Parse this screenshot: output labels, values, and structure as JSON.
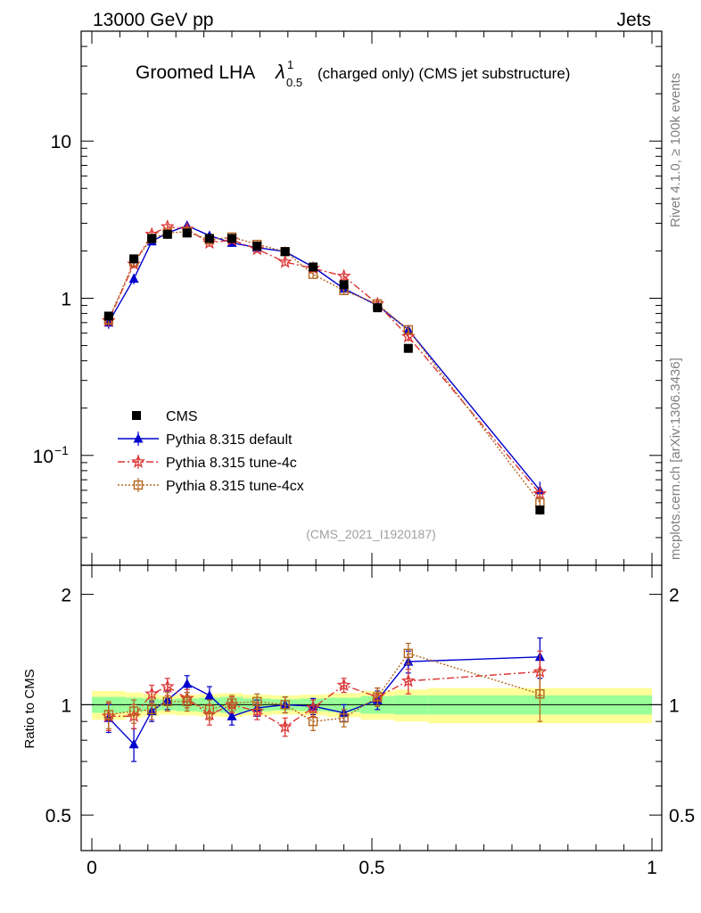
{
  "header": {
    "left": "13000 GeV pp",
    "right": "Jets"
  },
  "chart_data": {
    "type": "scatter",
    "title_main": "Groomed LHA",
    "title_symbol": "λ",
    "title_sup": "1",
    "title_sub": "0.5",
    "title_rest": "(charged only) (CMS jet substructure)",
    "analysis_label": "(CMS_2021_I1920187)",
    "side_label_top": "Rivet 4.1.0, ≥ 100k events",
    "side_label_bottom": "mcplots.cern.ch [arXiv:1306.3436]",
    "ylabel_ratio": "Ratio to CMS",
    "xlim": [
      0,
      1
    ],
    "ylim_main": [
      0.02,
      50
    ],
    "ylim_ratio": [
      0.4,
      2.4
    ],
    "yscale": "log",
    "x_ticks": [
      0,
      0.5,
      1
    ],
    "x_tick_labels": [
      "0",
      "0.5",
      "1"
    ],
    "main_ticks": [
      0.1,
      1,
      10
    ],
    "main_tick_base": [
      "10",
      "1",
      "10"
    ],
    "main_tick_exp": [
      "−1",
      "",
      ""
    ],
    "ratio_ticks": [
      0.5,
      1,
      2
    ],
    "ratio_tick_labels": [
      "0.5",
      "1",
      "2"
    ],
    "x": [
      0.03,
      0.075,
      0.107,
      0.135,
      0.17,
      0.21,
      0.25,
      0.295,
      0.345,
      0.395,
      0.45,
      0.51,
      0.565,
      0.8
    ],
    "band_edges": [
      0,
      0.06,
      0.09,
      0.12,
      0.15,
      0.19,
      0.23,
      0.27,
      0.32,
      0.37,
      0.42,
      0.48,
      0.54,
      0.6,
      1.0
    ],
    "band_inner": [
      0.05,
      0.045,
      0.04,
      0.035,
      0.04,
      0.045,
      0.05,
      0.04,
      0.035,
      0.04,
      0.045,
      0.055,
      0.06,
      0.06
    ],
    "band_outer": [
      0.09,
      0.08,
      0.07,
      0.06,
      0.065,
      0.07,
      0.075,
      0.065,
      0.06,
      0.065,
      0.075,
      0.09,
      0.1,
      0.11
    ],
    "series": [
      {
        "name": "CMS",
        "color": "#000000",
        "marker": "square",
        "values": [
          0.77,
          1.78,
          2.4,
          2.55,
          2.6,
          2.4,
          2.4,
          2.15,
          1.98,
          1.58,
          1.22,
          0.87,
          0.48,
          0.045
        ],
        "errors": [
          0.05,
          0.08,
          0.1,
          0.1,
          0.1,
          0.1,
          0.1,
          0.08,
          0.07,
          0.06,
          0.05,
          0.04,
          0.03,
          0.003
        ]
      },
      {
        "name": "Pythia 8.315 default",
        "color": "#0000cc",
        "marker": "triangle",
        "line": "solid",
        "values": [
          0.7,
          1.33,
          2.3,
          2.6,
          2.9,
          2.5,
          2.25,
          2.1,
          1.98,
          1.58,
          1.15,
          0.9,
          0.63,
          0.06
        ],
        "errors": [
          0.06,
          0.1,
          0.12,
          0.12,
          0.15,
          0.12,
          0.1,
          0.1,
          0.08,
          0.07,
          0.06,
          0.05,
          0.04,
          0.008
        ],
        "ratio": [
          0.92,
          0.78,
          0.96,
          1.03,
          1.14,
          1.06,
          0.93,
          0.98,
          1.0,
          0.99,
          0.95,
          1.03,
          1.31,
          1.35
        ],
        "ratio_err": [
          0.08,
          0.08,
          0.06,
          0.06,
          0.06,
          0.06,
          0.05,
          0.05,
          0.05,
          0.05,
          0.05,
          0.06,
          0.09,
          0.17
        ]
      },
      {
        "name": "Pythia 8.315 tune-4c",
        "color": "#dd3333",
        "marker": "star",
        "line": "dashdot",
        "values": [
          0.72,
          1.65,
          2.55,
          2.85,
          2.75,
          2.25,
          2.35,
          2.05,
          1.7,
          1.55,
          1.38,
          0.92,
          0.57,
          0.057
        ],
        "errors": [
          0.06,
          0.1,
          0.12,
          0.12,
          0.14,
          0.12,
          0.1,
          0.1,
          0.08,
          0.07,
          0.06,
          0.05,
          0.04,
          0.007
        ],
        "ratio": [
          0.93,
          0.93,
          1.07,
          1.12,
          1.04,
          0.94,
          1.0,
          0.96,
          0.87,
          0.98,
          1.13,
          1.05,
          1.16,
          1.23
        ],
        "ratio_err": [
          0.08,
          0.07,
          0.06,
          0.06,
          0.06,
          0.06,
          0.05,
          0.05,
          0.05,
          0.05,
          0.05,
          0.06,
          0.09,
          0.17
        ]
      },
      {
        "name": "Pythia 8.315 tune-4cx",
        "color": "#b5651d",
        "marker": "opensquare",
        "line": "dotted",
        "values": [
          0.73,
          1.7,
          2.4,
          2.6,
          2.65,
          2.35,
          2.45,
          2.2,
          1.98,
          1.42,
          1.12,
          0.92,
          0.63,
          0.05
        ],
        "errors": [
          0.06,
          0.1,
          0.12,
          0.12,
          0.14,
          0.12,
          0.1,
          0.1,
          0.08,
          0.07,
          0.06,
          0.05,
          0.04,
          0.007
        ],
        "ratio": [
          0.94,
          0.96,
          0.97,
          1.02,
          1.02,
          0.97,
          1.01,
          1.02,
          1.0,
          0.9,
          0.92,
          1.05,
          1.38,
          1.07
        ],
        "ratio_err": [
          0.08,
          0.07,
          0.06,
          0.06,
          0.06,
          0.06,
          0.05,
          0.05,
          0.05,
          0.05,
          0.05,
          0.06,
          0.09,
          0.17
        ]
      }
    ]
  }
}
